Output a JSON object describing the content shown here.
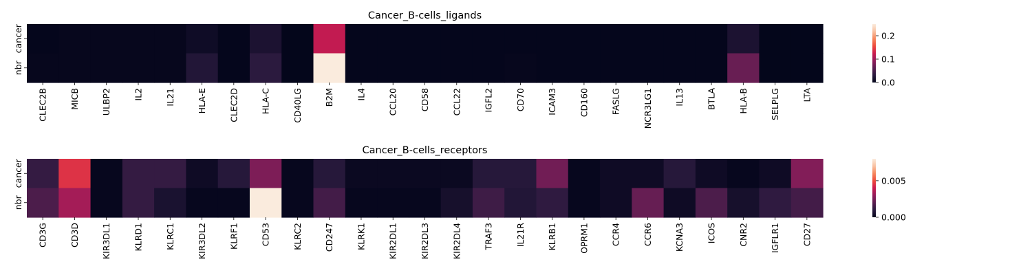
{
  "colors": {
    "cmap": [
      "#03051a",
      "#2a1a3e",
      "#5b1e51",
      "#931c5b",
      "#cb1b4f",
      "#ee4b3c",
      "#f6885e",
      "#f9c2a3",
      "#faebdd"
    ]
  },
  "chart_data": [
    {
      "type": "heatmap",
      "title": "Cancer_B-cells_ligands",
      "rows": [
        "cancer",
        "nbr"
      ],
      "columns": [
        "CLEC2B",
        "MICB",
        "ULBP2",
        "IL2",
        "IL21",
        "HLA-E",
        "CLEC2D",
        "HLA-C",
        "CD40LG",
        "B2M",
        "IL4",
        "CCL20",
        "CD58",
        "CCL22",
        "IGFL2",
        "CD70",
        "ICAM3",
        "CD160",
        "FASLG",
        "NCR3LG1",
        "IL13",
        "BTLA",
        "HLA-B",
        "SELPLG",
        "LTA"
      ],
      "values": [
        [
          0.002,
          0.003,
          0.003,
          0.003,
          0.003,
          0.01,
          0.002,
          0.02,
          0.001,
          0.12,
          0.002,
          0.002,
          0.002,
          0.002,
          0.002,
          0.002,
          0.002,
          0.002,
          0.002,
          0.002,
          0.002,
          0.002,
          0.02,
          0.001,
          0.001
        ],
        [
          0.003,
          0.003,
          0.003,
          0.003,
          0.003,
          0.025,
          0.002,
          0.032,
          0.001,
          0.25,
          0.002,
          0.002,
          0.002,
          0.002,
          0.002,
          0.003,
          0.002,
          0.002,
          0.002,
          0.002,
          0.002,
          0.002,
          0.07,
          0.001,
          0.001
        ]
      ],
      "colorbar": {
        "min": 0.0,
        "max": 0.25,
        "ticks": [
          0.0,
          0.1,
          0.2
        ],
        "tick_labels": [
          "0.0",
          "0.1",
          "0.2"
        ]
      }
    },
    {
      "type": "heatmap",
      "title": "Cancer_B-cells_receptors",
      "rows": [
        "cancer",
        "nbr"
      ],
      "columns": [
        "CD3G",
        "CD3D",
        "KIR3DL1",
        "KLRD1",
        "KLRC1",
        "KIR3DL2",
        "KLRF1",
        "CD53",
        "KLRC2",
        "CD247",
        "KLRK1",
        "KIR2DL1",
        "KIR2DL3",
        "KIR2DL4",
        "TRAF3",
        "IL21R",
        "KLRB1",
        "OPRM1",
        "CCR4",
        "CCR6",
        "KCNA3",
        "ICOS",
        "CNR2",
        "IGFLR1",
        "CD27"
      ],
      "values": [
        [
          0.0012,
          0.0045,
          0.0001,
          0.0012,
          0.0012,
          0.0003,
          0.0009,
          0.0026,
          0.0001,
          0.0009,
          0.0002,
          0.0002,
          0.0002,
          0.0002,
          0.0009,
          0.0009,
          0.0024,
          0.0001,
          0.0003,
          0.0003,
          0.0009,
          0.0003,
          0.0001,
          0.0003,
          0.0027
        ],
        [
          0.0017,
          0.0033,
          0.0001,
          0.0012,
          0.0006,
          0.0001,
          0.0001,
          0.008,
          0.0001,
          0.0015,
          0.0001,
          0.0001,
          0.0001,
          0.0005,
          0.0014,
          0.0008,
          0.0011,
          0.0001,
          0.0003,
          0.0022,
          0.0003,
          0.0017,
          0.0005,
          0.0011,
          0.0015
        ]
      ],
      "colorbar": {
        "min": 0.0,
        "max": 0.008,
        "ticks": [
          0.0,
          0.005
        ],
        "tick_labels": [
          "0.000",
          "0.005"
        ]
      }
    }
  ]
}
